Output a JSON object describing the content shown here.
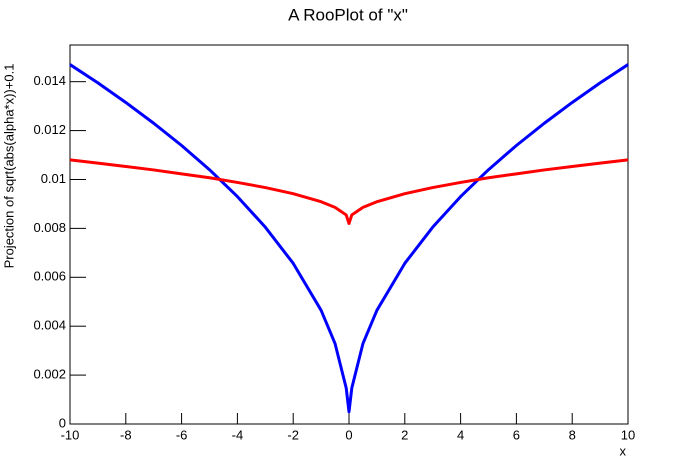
{
  "chart_data": {
    "type": "line",
    "title": "A RooPlot of \"x\"",
    "x_label": "x",
    "y_label": "Projection of sqrt(abs(alpha*x))+0.1",
    "x": [
      -10,
      -9,
      -8,
      -7,
      -6,
      -5,
      -4,
      -3,
      -2,
      -1,
      -0.5,
      -0.1,
      0,
      0.1,
      0.5,
      1,
      2,
      3,
      4,
      5,
      6,
      7,
      8,
      9,
      10
    ],
    "series": [
      {
        "name": "blue",
        "color": "#0000ff",
        "values": [
          0.0147,
          0.01395,
          0.01315,
          0.0123,
          0.01139,
          0.0104,
          0.0093,
          0.00805,
          0.00657,
          0.00465,
          0.00329,
          0.00147,
          0.0005,
          0.00147,
          0.00329,
          0.00465,
          0.00657,
          0.00805,
          0.0093,
          0.0104,
          0.01139,
          0.0123,
          0.01315,
          0.01395,
          0.0147
        ]
      },
      {
        "name": "red",
        "color": "#ff0000",
        "values": [
          0.0108,
          0.01067,
          0.01053,
          0.01039,
          0.01023,
          0.01007,
          0.00988,
          0.00967,
          0.00942,
          0.00909,
          0.00886,
          0.00855,
          0.0082,
          0.00855,
          0.00886,
          0.00909,
          0.00942,
          0.00967,
          0.00988,
          0.01007,
          0.01023,
          0.01039,
          0.01053,
          0.01067,
          0.0108
        ]
      }
    ],
    "xlim": [
      -10,
      10
    ],
    "xticks": [
      -10,
      -8,
      -6,
      -4,
      -2,
      0,
      2,
      4,
      6,
      8,
      10
    ],
    "ylim": [
      0,
      0.0155
    ],
    "yticks": [
      0,
      0.002,
      0.004,
      0.006,
      0.008,
      0.01,
      0.012,
      0.014
    ]
  }
}
